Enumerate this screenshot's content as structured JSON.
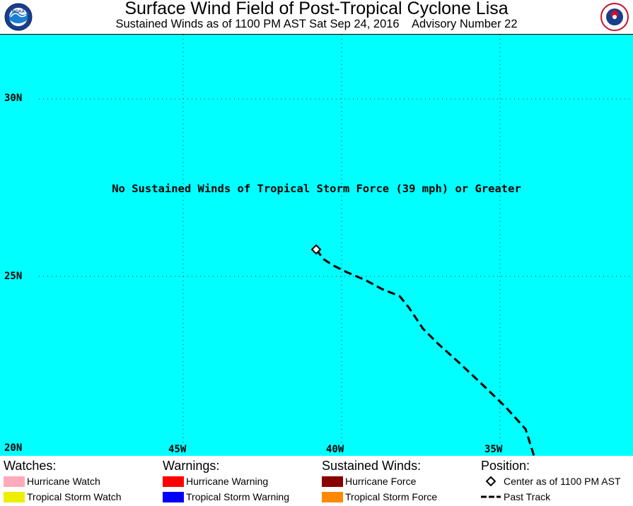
{
  "header": {
    "title": "Surface Wind Field of Post-Tropical Cyclone Lisa",
    "subtitle": "Sustained Winds as of 1100 PM AST Sat Sep 24, 2016    Advisory Number 22",
    "left_logo": "noaa-logo",
    "right_logo": "nws-logo"
  },
  "map": {
    "background_color": "#00ffff",
    "message": "No Sustained Winds of Tropical Storm Force (39 mph) or Greater",
    "lat_labels": [
      "30N",
      "25N",
      "20N"
    ],
    "lon_labels": [
      "45W",
      "40W",
      "35W"
    ]
  },
  "legend": {
    "watches": {
      "heading": "Watches:",
      "items": [
        {
          "label": "Hurricane Watch",
          "color": "#ffaabb"
        },
        {
          "label": "Tropical Storm Watch",
          "color": "#eeee00"
        }
      ]
    },
    "warnings": {
      "heading": "Warnings:",
      "items": [
        {
          "label": "Hurricane Warning",
          "color": "#ff0000"
        },
        {
          "label": "Tropical Storm Warning",
          "color": "#0000ff"
        }
      ]
    },
    "winds": {
      "heading": "Sustained Winds:",
      "items": [
        {
          "label": "Hurricane Force",
          "color": "#880000"
        },
        {
          "label": "Tropical Storm Force",
          "color": "#ff8800"
        }
      ]
    },
    "position": {
      "heading": "Position:",
      "items": [
        {
          "label": "Center as of 1100 PM AST",
          "icon": "diamond-icon"
        },
        {
          "label": "Past Track",
          "icon": "dashed-line-icon"
        }
      ]
    }
  }
}
